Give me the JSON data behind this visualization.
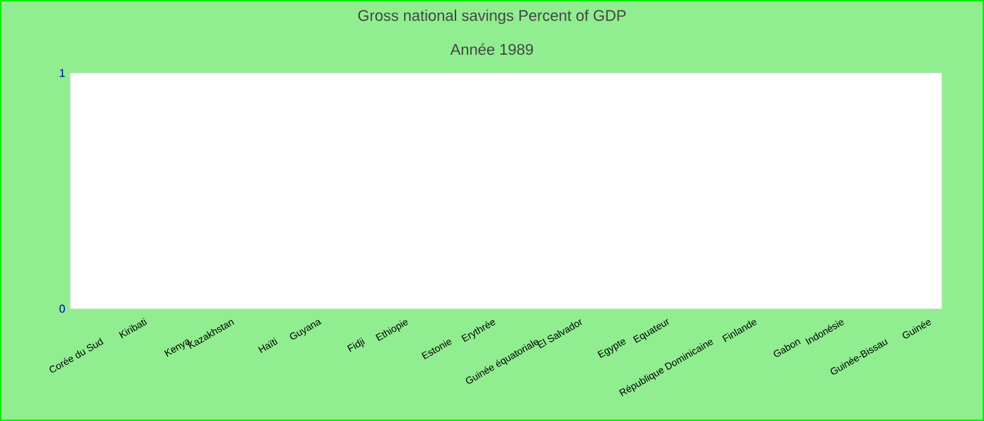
{
  "chart_data": {
    "type": "bar",
    "title": "Gross national savings  Percent of GDP",
    "subtitle": "Année 1989",
    "categories": [
      "Corée du Sud",
      "Kiribati",
      "Kenya",
      "Kazakhstan",
      "Haïti",
      "Guyana",
      "Fidji",
      "Ethiopie",
      "Estonie",
      "Erythrée",
      "Guinée équatoriale",
      "El Salvador",
      "Egypte",
      "Equateur",
      "République Dominicaine",
      "Finlande",
      "Gabon",
      "Indonésie",
      "Guinée-Bissau",
      "Guinée"
    ],
    "values": [
      null,
      null,
      null,
      null,
      null,
      null,
      null,
      null,
      null,
      null,
      null,
      null,
      null,
      null,
      null,
      null,
      null,
      null,
      null,
      null
    ],
    "ylim": [
      0,
      1
    ],
    "yticks": [
      0,
      1
    ],
    "grid": false
  }
}
